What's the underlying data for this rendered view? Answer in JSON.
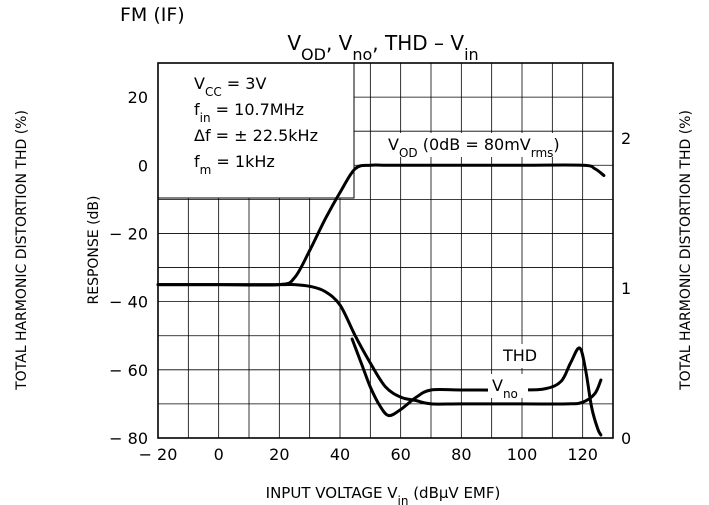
{
  "header": "FM (IF)",
  "chart_data": {
    "type": "line",
    "title": {
      "parts": [
        {
          "t": "V",
          "s": "OD"
        },
        {
          "t": ", V",
          "s": "no"
        },
        {
          "t": ", THD – V",
          "s": "in"
        }
      ]
    },
    "xlabel": {
      "before": "INPUT VOLTAGE   V",
      "sub": "in",
      "after": "   (dBμV EMF)"
    },
    "ylabel_left": "RESPONSE   (dB)",
    "ylabel_left_outer": "TOTAL HARMONIC DISTORTION   THD   (%)",
    "ylabel_right": "TOTAL HARMONIC DISTORTION   THD   (%)",
    "xlim": [
      -20,
      130
    ],
    "ylim": [
      -80,
      30
    ],
    "y2lim": [
      0,
      2.5
    ],
    "x_ticks": [
      -20,
      0,
      20,
      40,
      60,
      80,
      100,
      120
    ],
    "x_tick_labels": [
      "− 20",
      "0",
      "20",
      "40",
      "60",
      "80",
      "100",
      "120"
    ],
    "y_ticks": [
      20,
      0,
      -20,
      -40,
      -60,
      -80
    ],
    "y_tick_labels": [
      "20",
      "0",
      "− 20",
      "− 40",
      "− 60",
      "− 80"
    ],
    "y2_ticks": [
      2,
      1,
      0
    ],
    "y2_tick_labels": [
      "2",
      "1",
      "0"
    ],
    "grid": true,
    "conditions": [
      {
        "t": "V",
        "s": "CC",
        "a": " = 3V"
      },
      {
        "t": "f",
        "s": "in",
        "a": " = 10.7MHz"
      },
      {
        "t": "Δf = ± 22.5kHz",
        "s": "",
        "a": ""
      },
      {
        "t": "f",
        "s": "m",
        "a": " = 1kHz"
      }
    ],
    "series": [
      {
        "name": "VOD",
        "label": {
          "t": "V",
          "s": "OD",
          "a": "  (0dB = 80mV",
          "s2": "rms",
          "a2": ")"
        },
        "axis": "left",
        "x": [
          -20,
          0,
          20,
          25,
          30,
          35,
          40,
          45,
          50,
          55,
          60,
          80,
          100,
          120,
          124,
          127
        ],
        "y": [
          -35,
          -35,
          -35,
          -33,
          -25,
          -16,
          -8,
          -1,
          0,
          0,
          0,
          0,
          0,
          0,
          -1,
          -3
        ]
      },
      {
        "name": "Vno",
        "label": {
          "t": "V",
          "s": "no",
          "a": ""
        },
        "axis": "left",
        "x": [
          -20,
          0,
          20,
          25,
          30,
          35,
          40,
          45,
          50,
          55,
          60,
          65,
          70,
          80,
          100,
          115,
          120,
          124,
          126
        ],
        "y": [
          -35,
          -35,
          -35,
          -35,
          -35.5,
          -37,
          -41,
          -50,
          -58,
          -65,
          -68,
          -69,
          -70,
          -70,
          -70,
          -70,
          -69.5,
          -67,
          -63
        ]
      },
      {
        "name": "THD",
        "label": {
          "t": "THD",
          "s": "",
          "a": ""
        },
        "axis": "right",
        "x": [
          44,
          47,
          50,
          53,
          56,
          60,
          65,
          70,
          80,
          100,
          108,
          113,
          116,
          119,
          121,
          123,
          125,
          126
        ],
        "y": [
          0.66,
          0.5,
          0.34,
          0.22,
          0.15,
          0.19,
          0.27,
          0.32,
          0.32,
          0.32,
          0.33,
          0.38,
          0.5,
          0.6,
          0.45,
          0.2,
          0.06,
          0.02
        ]
      }
    ]
  }
}
